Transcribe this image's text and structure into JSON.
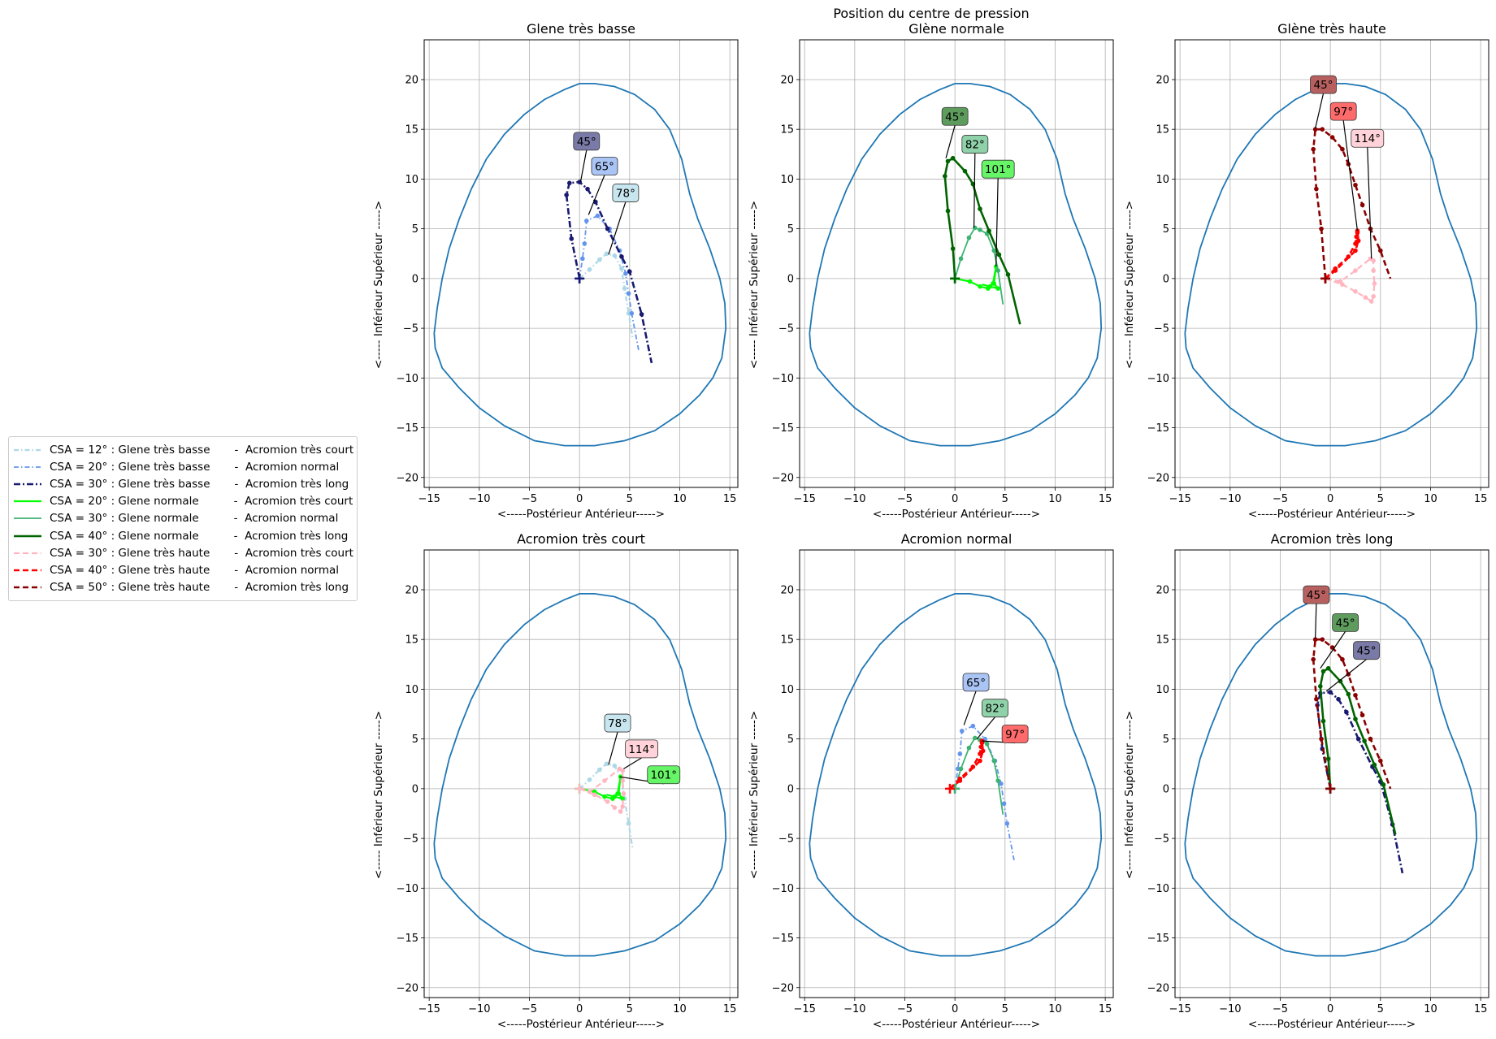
{
  "figure": {
    "suptitle": "Position du centre de pression"
  },
  "chart_data": [
    {
      "type": "line",
      "title": "Glene très basse",
      "xlabel": "<-----Postérieur                  Antérieur----->",
      "ylabel": "<----- Inférieur                  Supérieur ----->",
      "xlim": [
        -15.5,
        15.8
      ],
      "ylim": [
        -21,
        24
      ],
      "xticks": [
        -15,
        -10,
        -5,
        0,
        5,
        10,
        15
      ],
      "yticks": [
        -20,
        -15,
        -10,
        -5,
        0,
        5,
        10,
        15,
        20
      ],
      "grid": true,
      "series": [
        {
          "style": "csa12",
          "x": [
            0,
            1,
            2,
            2.7,
            3.5,
            4.2,
            4.5,
            4.9,
            5.3
          ],
          "y": [
            0,
            0.9,
            1.9,
            2.5,
            2.3,
            1.0,
            -1.0,
            -3.5,
            -6.0
          ]
        },
        {
          "style": "csa20b",
          "x": [
            0,
            0.3,
            0.5,
            0.7,
            1.8,
            3.0,
            4.0,
            4.6,
            4.9,
            5.2,
            5.9
          ],
          "y": [
            0,
            2.0,
            3.5,
            5.8,
            6.3,
            5.0,
            2.8,
            0.5,
            -1.5,
            -3.5,
            -7.2
          ]
        },
        {
          "style": "csa30b",
          "x": [
            0,
            -0.8,
            -1.3,
            -1.0,
            0.0,
            0.8,
            1.6,
            2.8,
            4.2,
            5.0,
            6.2,
            7.2
          ],
          "y": [
            0,
            4.0,
            8.4,
            9.6,
            9.7,
            9.0,
            7.7,
            5.0,
            2.2,
            0.7,
            -3.6,
            -8.5
          ]
        }
      ],
      "annotations": [
        {
          "text": "45°",
          "style": "csa30b",
          "x": 0.1,
          "y": 9.7,
          "tx": 0.7,
          "ty": 13.8
        },
        {
          "text": "65°",
          "style": "csa20b",
          "x": 0.9,
          "y": 6.4,
          "tx": 2.5,
          "ty": 11.3
        },
        {
          "text": "78°",
          "style": "csa12",
          "x": 2.9,
          "y": 2.4,
          "tx": 4.6,
          "ty": 8.6
        }
      ]
    },
    {
      "type": "line",
      "title": "Glène normale",
      "xlabel": "<-----Postérieur                  Antérieur----->",
      "ylabel": "<----- Inférieur                  Supérieur ----->",
      "xlim": [
        -15.5,
        15.8
      ],
      "ylim": [
        -21,
        24
      ],
      "xticks": [
        -15,
        -10,
        -5,
        0,
        5,
        10,
        15
      ],
      "yticks": [
        -20,
        -15,
        -10,
        -5,
        0,
        5,
        10,
        15,
        20
      ],
      "grid": true,
      "series": [
        {
          "style": "csa20n",
          "x": [
            0,
            1.5,
            2.5,
            3.3,
            3.8,
            4.1,
            3.9,
            4.3,
            3.5,
            2.7
          ],
          "y": [
            0,
            -0.3,
            -0.8,
            -1.0,
            -0.5,
            1.2,
            -0.5,
            -1.0,
            -0.8,
            -0.6
          ]
        },
        {
          "style": "csa30n",
          "x": [
            0,
            0.6,
            1.4,
            2.0,
            2.5,
            3.2,
            3.9,
            4.3,
            4.8
          ],
          "y": [
            0,
            2.0,
            4.1,
            5.1,
            4.9,
            4.5,
            2.8,
            0.8,
            -2.6
          ]
        },
        {
          "style": "csa40n",
          "x": [
            0,
            -0.2,
            -0.7,
            -1.0,
            -0.7,
            -0.2,
            1.0,
            1.8,
            2.5,
            3.4,
            4.4,
            5.3,
            6.5
          ],
          "y": [
            0,
            3.0,
            6.8,
            10.3,
            11.8,
            12.1,
            10.8,
            9.5,
            7.0,
            4.8,
            2.4,
            0.4,
            -4.6
          ]
        }
      ],
      "annotations": [
        {
          "text": "45°",
          "style": "csa40n",
          "x": -0.9,
          "y": 12.1,
          "tx": 0.0,
          "ty": 16.3
        },
        {
          "text": "82°",
          "style": "csa30n",
          "x": 1.9,
          "y": 5.1,
          "tx": 2.0,
          "ty": 13.5
        },
        {
          "text": "101°",
          "style": "csa20n",
          "x": 4.1,
          "y": 1.2,
          "tx": 4.3,
          "ty": 11.0
        }
      ]
    },
    {
      "type": "line",
      "title": "Glène très haute",
      "xlabel": "<-----Postérieur                  Antérieur----->",
      "ylabel": "<----- Inférieur                  Supérieur ----->",
      "xlim": [
        -15.5,
        15.8
      ],
      "ylim": [
        -21,
        24
      ],
      "xticks": [
        -15,
        -10,
        -5,
        0,
        5,
        10,
        15
      ],
      "yticks": [
        -20,
        -15,
        -10,
        -5,
        0,
        5,
        10,
        15,
        20
      ],
      "grid": true,
      "series": [
        {
          "style": "csa30h",
          "x": [
            -0.5,
            1.2,
            2.5,
            3.5,
            4.1,
            4.3,
            4.4,
            4.3,
            4.3,
            4.0,
            2.5,
            1.0,
            -0.5
          ],
          "y": [
            0,
            -0.6,
            -1.3,
            -1.9,
            -2.3,
            -1.8,
            -0.5,
            0.8,
            1.8,
            2.0,
            0.8,
            -0.3,
            0
          ]
        },
        {
          "style": "csa40h",
          "x": [
            -0.5,
            0.5,
            1.8,
            2.5,
            2.6,
            2.7,
            2.7,
            2.8,
            2.5,
            0.5,
            -0.5
          ],
          "y": [
            0,
            1.0,
            2.2,
            3.5,
            4.2,
            4.6,
            4.8,
            3.8,
            2.8,
            0.8,
            0
          ]
        },
        {
          "style": "csa50h",
          "x": [
            -0.5,
            -0.9,
            -1.4,
            -1.7,
            -1.5,
            -0.8,
            0.2,
            1.2,
            1.8,
            2.5,
            3.2,
            4.0,
            5.0,
            6.0
          ],
          "y": [
            0,
            5.0,
            9.0,
            13.0,
            15.0,
            15.0,
            14.2,
            13.0,
            11.5,
            9.4,
            7.4,
            5.0,
            2.8,
            0.0
          ]
        }
      ],
      "annotations": [
        {
          "text": "45°",
          "style": "csa50h",
          "x": -1.5,
          "y": 15.1,
          "tx": -0.7,
          "ty": 19.5
        },
        {
          "text": "97°",
          "style": "csa40h",
          "x": 2.7,
          "y": 4.8,
          "tx": 1.3,
          "ty": 16.8
        },
        {
          "text": "114°",
          "style": "csa30h",
          "x": 4.1,
          "y": 2.0,
          "tx": 3.7,
          "ty": 14.1
        }
      ]
    },
    {
      "type": "line",
      "title": "Acromion très court",
      "xlabel": "<-----Postérieur                  Antérieur----->",
      "ylabel": "<----- Inférieur                  Supérieur ----->",
      "xlim": [
        -15.5,
        15.8
      ],
      "ylim": [
        -21,
        24
      ],
      "xticks": [
        -15,
        -10,
        -5,
        0,
        5,
        10,
        15
      ],
      "yticks": [
        -20,
        -15,
        -10,
        -5,
        0,
        5,
        10,
        15,
        20
      ],
      "grid": true,
      "series": [
        {
          "style": "csa12",
          "x": [
            0,
            1,
            2,
            2.7,
            3.5,
            4.2,
            4.5,
            4.9,
            5.3
          ],
          "y": [
            0,
            0.9,
            1.9,
            2.5,
            2.3,
            1.0,
            -1.0,
            -3.5,
            -6.0
          ]
        },
        {
          "style": "csa20n",
          "x": [
            0,
            1.5,
            2.5,
            3.3,
            3.8,
            4.1,
            3.9,
            4.3,
            3.5,
            2.7
          ],
          "y": [
            0,
            -0.3,
            -0.8,
            -1.0,
            -0.5,
            1.2,
            -0.5,
            -1.0,
            -0.8,
            -0.6
          ]
        },
        {
          "style": "csa30h",
          "x": [
            0,
            1.5,
            2.8,
            3.5,
            4.1,
            4.3,
            4.4,
            4.3,
            4.3,
            4.0,
            2.5,
            1.0,
            0
          ],
          "y": [
            0,
            -0.6,
            -1.3,
            -1.9,
            -2.3,
            -1.8,
            -0.5,
            0.8,
            1.8,
            2.0,
            0.8,
            -0.3,
            0
          ]
        }
      ],
      "annotations": [
        {
          "text": "78°",
          "style": "csa12",
          "x": 2.9,
          "y": 2.4,
          "tx": 3.8,
          "ty": 6.6
        },
        {
          "text": "114°",
          "style": "csa30h",
          "x": 4.4,
          "y": 2.0,
          "tx": 6.2,
          "ty": 4.0
        },
        {
          "text": "101°",
          "style": "csa20n",
          "x": 4.0,
          "y": 1.2,
          "tx": 8.4,
          "ty": 1.4
        }
      ]
    },
    {
      "type": "line",
      "title": "Acromion normal",
      "xlabel": "<-----Postérieur                  Antérieur----->",
      "ylabel": "<----- Inférieur                  Supérieur ----->",
      "xlim": [
        -15.5,
        15.8
      ],
      "ylim": [
        -21,
        24
      ],
      "xticks": [
        -15,
        -10,
        -5,
        0,
        5,
        10,
        15
      ],
      "yticks": [
        -20,
        -15,
        -10,
        -5,
        0,
        5,
        10,
        15,
        20
      ],
      "grid": true,
      "series": [
        {
          "style": "csa20b",
          "x": [
            0,
            0.3,
            0.5,
            0.7,
            1.8,
            3.0,
            4.0,
            4.6,
            4.9,
            5.2,
            5.9
          ],
          "y": [
            0,
            2.0,
            3.5,
            5.8,
            6.3,
            5.0,
            2.8,
            0.5,
            -1.5,
            -3.5,
            -7.2
          ]
        },
        {
          "style": "csa30n",
          "x": [
            0,
            0.6,
            1.4,
            2.0,
            2.5,
            3.2,
            3.9,
            4.3,
            4.8
          ],
          "y": [
            0,
            2.0,
            4.1,
            5.1,
            4.9,
            4.5,
            2.8,
            0.8,
            -2.6
          ]
        },
        {
          "style": "csa40h",
          "x": [
            -0.5,
            0.5,
            1.8,
            2.5,
            2.6,
            2.7,
            2.7,
            2.8,
            2.5,
            0.5,
            -0.5
          ],
          "y": [
            0,
            1.0,
            2.2,
            3.5,
            4.2,
            4.6,
            4.8,
            3.8,
            2.8,
            0.8,
            0
          ]
        }
      ],
      "annotations": [
        {
          "text": "65°",
          "style": "csa20b",
          "x": 0.9,
          "y": 6.4,
          "tx": 2.1,
          "ty": 10.7
        },
        {
          "text": "82°",
          "style": "csa30n",
          "x": 2.2,
          "y": 5.0,
          "tx": 4.0,
          "ty": 8.1
        },
        {
          "text": "97°",
          "style": "csa40h",
          "x": 2.7,
          "y": 4.8,
          "tx": 6.0,
          "ty": 5.5
        }
      ]
    },
    {
      "type": "line",
      "title": "Acromion très long",
      "xlabel": "<-----Postérieur                  Antérieur----->",
      "ylabel": "<----- Inférieur                  Supérieur ----->",
      "xlim": [
        -15.5,
        15.8
      ],
      "ylim": [
        -21,
        24
      ],
      "xticks": [
        -15,
        -10,
        -5,
        0,
        5,
        10,
        15
      ],
      "yticks": [
        -20,
        -15,
        -10,
        -5,
        0,
        5,
        10,
        15,
        20
      ],
      "grid": true,
      "series": [
        {
          "style": "csa30b",
          "x": [
            0,
            -0.8,
            -1.3,
            -1.0,
            0.0,
            0.8,
            1.6,
            2.8,
            4.2,
            5.0,
            6.2,
            7.2
          ],
          "y": [
            0,
            4.0,
            8.4,
            9.6,
            9.7,
            9.0,
            7.7,
            5.0,
            2.2,
            0.7,
            -3.6,
            -8.5
          ]
        },
        {
          "style": "csa40n",
          "x": [
            0,
            -0.2,
            -0.7,
            -1.0,
            -0.7,
            -0.2,
            1.0,
            1.8,
            2.5,
            3.4,
            4.4,
            5.3,
            6.5
          ],
          "y": [
            0,
            3.0,
            6.8,
            10.3,
            11.8,
            12.1,
            10.8,
            9.5,
            7.0,
            4.8,
            2.4,
            0.4,
            -4.6
          ]
        },
        {
          "style": "csa50h",
          "x": [
            0,
            -0.9,
            -1.4,
            -1.7,
            -1.5,
            -0.8,
            0.2,
            1.2,
            1.8,
            2.5,
            3.2,
            4.0,
            5.0,
            6.0
          ],
          "y": [
            0,
            5.0,
            9.0,
            13.0,
            15.0,
            15.0,
            14.2,
            13.0,
            11.5,
            9.4,
            7.4,
            5.0,
            2.8,
            0.0
          ]
        }
      ],
      "annotations": [
        {
          "text": "45°",
          "style": "csa50h",
          "x": -1.5,
          "y": 15.1,
          "tx": -1.4,
          "ty": 19.5
        },
        {
          "text": "45°",
          "style": "csa40n",
          "x": -1.0,
          "y": 12.1,
          "tx": 1.5,
          "ty": 16.7
        },
        {
          "text": "45°",
          "style": "csa30b",
          "x": -0.4,
          "y": 9.8,
          "tx": 3.6,
          "ty": 13.9
        }
      ]
    }
  ],
  "styles": {
    "csa12": {
      "color": "#add8e6",
      "dash": "6,3,1.5,3",
      "width": 2.2,
      "box": "#c8e6ef"
    },
    "csa20b": {
      "color": "#6495ed",
      "dash": "6,3,1.5,3",
      "width": 1.8,
      "box": "#a9c4f5"
    },
    "csa30b": {
      "color": "#191970",
      "dash": "8,3,2,3",
      "width": 2.6,
      "box": "#7a7aa8"
    },
    "csa20n": {
      "color": "#00ff00",
      "dash": "",
      "width": 2.2,
      "box": "#66f566"
    },
    "csa30n": {
      "color": "#3cb371",
      "dash": "",
      "width": 1.8,
      "box": "#8fd1a8"
    },
    "csa40n": {
      "color": "#006400",
      "dash": "",
      "width": 2.6,
      "box": "#5e9c5e"
    },
    "csa30h": {
      "color": "#ffb6c1",
      "dash": "7,4",
      "width": 2.2,
      "box": "#ffd3d9"
    },
    "csa40h": {
      "color": "#ff0000",
      "dash": "7,4",
      "width": 2.6,
      "box": "#ff6a6a"
    },
    "csa50h": {
      "color": "#8b0000",
      "dash": "7,4",
      "width": 2.6,
      "box": "#b86060"
    }
  },
  "outline_color": "#1f77b4",
  "legend": {
    "placement": "left",
    "items": [
      {
        "style": "csa12",
        "label": "CSA = 12° : Glene très basse       -  Acromion très court"
      },
      {
        "style": "csa20b",
        "label": "CSA = 20° : Glene très basse       -  Acromion normal"
      },
      {
        "style": "csa30b",
        "label": "CSA = 30° : Glene très basse       -  Acromion très long"
      },
      {
        "style": "csa20n",
        "label": "CSA = 20° : Glene normale          -  Acromion très court"
      },
      {
        "style": "csa30n",
        "label": "CSA = 30° : Glene normale          -  Acromion normal"
      },
      {
        "style": "csa40n",
        "label": "CSA = 40° : Glene normale          -  Acromion très long"
      },
      {
        "style": "csa30h",
        "label": "CSA = 30° : Glene très haute       -  Acromion très court"
      },
      {
        "style": "csa40h",
        "label": "CSA = 40° : Glene très haute       -  Acromion normal"
      },
      {
        "style": "csa50h",
        "label": "CSA = 50° : Glene très haute       -  Acromion très long"
      }
    ]
  }
}
